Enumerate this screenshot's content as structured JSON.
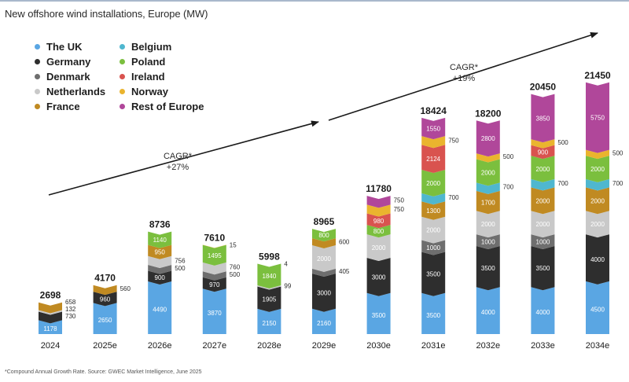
{
  "title": "New offshore wind installations, Europe (MW)",
  "footnote": "*Compound Annual Growth Rate. Source: GWEC Market Intelligence, June 2025",
  "cagr_labels": [
    {
      "line1": "CAGR*",
      "line2": "+27%"
    },
    {
      "line1": "CAGR*",
      "line2": "+19%"
    }
  ],
  "legend": [
    {
      "name": "The UK",
      "color": "#5aa6e3"
    },
    {
      "name": "Germany",
      "color": "#2e2e2e"
    },
    {
      "name": "Denmark",
      "color": "#6e6e6e"
    },
    {
      "name": "Netherlands",
      "color": "#c9c9c9"
    },
    {
      "name": "France",
      "color": "#c08a22"
    },
    {
      "name": "Belgium",
      "color": "#4fb7cf"
    },
    {
      "name": "Poland",
      "color": "#7bbf3e"
    },
    {
      "name": "Ireland",
      "color": "#d9534f"
    },
    {
      "name": "Norway",
      "color": "#eab42e"
    },
    {
      "name": "Rest of Europe",
      "color": "#b0479a"
    }
  ],
  "chart_data": {
    "type": "bar",
    "stacked": true,
    "title": "New offshore wind installations, Europe (MW)",
    "unit": "MW",
    "categories": [
      "2024",
      "2025e",
      "2026e",
      "2027e",
      "2028e",
      "2029e",
      "2030e",
      "2031e",
      "2032e",
      "2033e",
      "2034e"
    ],
    "totals": [
      "2698",
      "4170",
      "8736",
      "7610",
      "5998",
      "8965",
      "11780",
      "18424",
      "18200",
      "20450",
      "21450"
    ],
    "ylim": [
      0,
      22000
    ],
    "segments": [
      [
        {
          "series": "The UK",
          "value": 1178,
          "label": "1178",
          "lpos": "inside"
        },
        {
          "series": "Germany",
          "value": 730,
          "label": "730",
          "lpos": "right"
        },
        {
          "series": "Netherlands",
          "value": 132,
          "label": "132",
          "lpos": "right"
        },
        {
          "series": "France",
          "value": 658,
          "label": "658",
          "lpos": "right"
        }
      ],
      [
        {
          "series": "The UK",
          "value": 2650,
          "label": "2650",
          "lpos": "inside"
        },
        {
          "series": "Germany",
          "value": 960,
          "label": "960",
          "lpos": "inside"
        },
        {
          "series": "France",
          "value": 560,
          "label": "560",
          "lpos": "right"
        }
      ],
      [
        {
          "series": "The UK",
          "value": 4490,
          "label": "4490",
          "lpos": "inside"
        },
        {
          "series": "Germany",
          "value": 900,
          "label": "900",
          "lpos": "inside"
        },
        {
          "series": "Denmark",
          "value": 500,
          "label": "500",
          "lpos": "right"
        },
        {
          "series": "Netherlands",
          "value": 756,
          "label": "756",
          "lpos": "right"
        },
        {
          "series": "France",
          "value": 950,
          "label": "950",
          "lpos": "inside"
        },
        {
          "series": "Poland",
          "value": 1140,
          "label": "1140",
          "lpos": "inside"
        }
      ],
      [
        {
          "series": "The UK",
          "value": 3870,
          "label": "3870",
          "lpos": "inside"
        },
        {
          "series": "Germany",
          "value": 970,
          "label": "970",
          "lpos": "inside"
        },
        {
          "series": "Denmark",
          "value": 500,
          "label": "500",
          "lpos": "right"
        },
        {
          "series": "Netherlands",
          "value": 760,
          "label": "760",
          "lpos": "right"
        },
        {
          "series": "Poland",
          "value": 1495,
          "label": "1495",
          "lpos": "inside"
        },
        {
          "series": "Norway",
          "value": 15,
          "label": "15",
          "lpos": "right"
        }
      ],
      [
        {
          "series": "The UK",
          "value": 2150,
          "label": "2150",
          "lpos": "inside"
        },
        {
          "series": "Germany",
          "value": 1905,
          "label": "1905",
          "lpos": "inside"
        },
        {
          "series": "Netherlands",
          "value": 99,
          "label": "99",
          "lpos": "right"
        },
        {
          "series": "Poland",
          "value": 1840,
          "label": "1840",
          "lpos": "inside"
        },
        {
          "series": "Norway",
          "value": 4,
          "label": "4",
          "lpos": "right"
        }
      ],
      [
        {
          "series": "The UK",
          "value": 2160,
          "label": "2160",
          "lpos": "inside"
        },
        {
          "series": "Germany",
          "value": 3000,
          "label": "3000",
          "lpos": "inside"
        },
        {
          "series": "Denmark",
          "value": 405,
          "label": "405",
          "lpos": "right"
        },
        {
          "series": "Netherlands",
          "value": 2000,
          "label": "2000",
          "lpos": "inside"
        },
        {
          "series": "France",
          "value": 600,
          "label": "600",
          "lpos": "right"
        },
        {
          "series": "Poland",
          "value": 800,
          "label": "800",
          "lpos": "inside"
        }
      ],
      [
        {
          "series": "The UK",
          "value": 3500,
          "label": "3500",
          "lpos": "inside"
        },
        {
          "series": "Germany",
          "value": 3000,
          "label": "3000",
          "lpos": "inside"
        },
        {
          "series": "Netherlands",
          "value": 2000,
          "label": "2000",
          "lpos": "inside"
        },
        {
          "series": "Poland",
          "value": 800,
          "label": "800",
          "lpos": "inside"
        },
        {
          "series": "Ireland",
          "value": 980,
          "label": "980",
          "lpos": "inside"
        },
        {
          "series": "Norway",
          "value": 750,
          "label": "750",
          "lpos": "right"
        },
        {
          "series": "Rest of Europe",
          "value": 750,
          "label": "750",
          "lpos": "right"
        }
      ],
      [
        {
          "series": "The UK",
          "value": 3500,
          "label": "3500",
          "lpos": "inside"
        },
        {
          "series": "Germany",
          "value": 3500,
          "label": "3500",
          "lpos": "inside"
        },
        {
          "series": "Denmark",
          "value": 1000,
          "label": "1000",
          "lpos": "inside"
        },
        {
          "series": "Netherlands",
          "value": 2000,
          "label": "2000",
          "lpos": "inside"
        },
        {
          "series": "France",
          "value": 1300,
          "label": "1300",
          "lpos": "inside"
        },
        {
          "series": "Belgium",
          "value": 700,
          "label": "700",
          "lpos": "right"
        },
        {
          "series": "Poland",
          "value": 2000,
          "label": "2000",
          "lpos": "inside"
        },
        {
          "series": "Ireland",
          "value": 2124,
          "label": "2124",
          "lpos": "inside"
        },
        {
          "series": "Norway",
          "value": 750,
          "label": "750",
          "lpos": "right"
        },
        {
          "series": "Rest of Europe",
          "value": 1550,
          "label": "1550",
          "lpos": "inside"
        }
      ],
      [
        {
          "series": "The UK",
          "value": 4000,
          "label": "4000",
          "lpos": "inside"
        },
        {
          "series": "Germany",
          "value": 3500,
          "label": "3500",
          "lpos": "inside"
        },
        {
          "series": "Denmark",
          "value": 1000,
          "label": "1000",
          "lpos": "inside"
        },
        {
          "series": "Netherlands",
          "value": 2000,
          "label": "2000",
          "lpos": "inside"
        },
        {
          "series": "France",
          "value": 1700,
          "label": "1700",
          "lpos": "inside"
        },
        {
          "series": "Belgium",
          "value": 700,
          "label": "700",
          "lpos": "right"
        },
        {
          "series": "Poland",
          "value": 2000,
          "label": "2000",
          "lpos": "inside"
        },
        {
          "series": "Norway",
          "value": 500,
          "label": "500",
          "lpos": "right"
        },
        {
          "series": "Rest of Europe",
          "value": 2800,
          "label": "2800",
          "lpos": "inside"
        }
      ],
      [
        {
          "series": "The UK",
          "value": 4000,
          "label": "4000",
          "lpos": "inside"
        },
        {
          "series": "Germany",
          "value": 3500,
          "label": "3500",
          "lpos": "inside"
        },
        {
          "series": "Denmark",
          "value": 1000,
          "label": "1000",
          "lpos": "inside"
        },
        {
          "series": "Netherlands",
          "value": 2000,
          "label": "2000",
          "lpos": "inside"
        },
        {
          "series": "France",
          "value": 2000,
          "label": "2000",
          "lpos": "inside"
        },
        {
          "series": "Belgium",
          "value": 700,
          "label": "700",
          "lpos": "right"
        },
        {
          "series": "Poland",
          "value": 2000,
          "label": "2000",
          "lpos": "inside"
        },
        {
          "series": "Ireland",
          "value": 900,
          "label": "900",
          "lpos": "inside"
        },
        {
          "series": "Norway",
          "value": 500,
          "label": "500",
          "lpos": "right"
        },
        {
          "series": "Rest of Europe",
          "value": 3850,
          "label": "3850",
          "lpos": "inside"
        }
      ],
      [
        {
          "series": "The UK",
          "value": 4500,
          "label": "4500",
          "lpos": "inside"
        },
        {
          "series": "Germany",
          "value": 4000,
          "label": "4000",
          "lpos": "inside"
        },
        {
          "series": "Netherlands",
          "value": 2000,
          "label": "2000",
          "lpos": "inside"
        },
        {
          "series": "France",
          "value": 2000,
          "label": "2000",
          "lpos": "inside"
        },
        {
          "series": "Belgium",
          "value": 700,
          "label": "700",
          "lpos": "right"
        },
        {
          "series": "Poland",
          "value": 2000,
          "label": "2000",
          "lpos": "inside"
        },
        {
          "series": "Norway",
          "value": 500,
          "label": "500",
          "lpos": "right"
        },
        {
          "series": "Rest of Europe",
          "value": 5750,
          "label": "5750",
          "lpos": "inside"
        }
      ]
    ]
  }
}
